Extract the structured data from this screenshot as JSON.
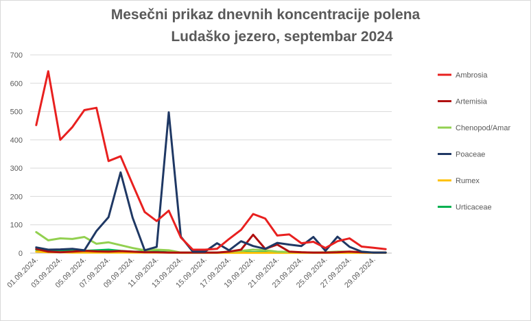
{
  "chart_data": {
    "type": "line",
    "title": "Mesečni prikaz dnevnih koncentracije polena",
    "subtitle": "Ludaško jezero, septembar 2024",
    "ylim": [
      0,
      700
    ],
    "y_ticks": [
      0,
      100,
      200,
      300,
      400,
      500,
      600,
      700
    ],
    "grid": true,
    "legend_position": "right",
    "x": [
      "01.09.2024.",
      "02.09.2024.",
      "03.09.2024.",
      "04.09.2024.",
      "05.09.2024.",
      "06.09.2024.",
      "07.09.2024.",
      "08.09.2024.",
      "09.09.2024.",
      "10.09.2024.",
      "11.09.2024.",
      "12.09.2024.",
      "13.09.2024.",
      "14.09.2024.",
      "15.09.2024.",
      "16.09.2024.",
      "17.09.2024.",
      "18.09.2024.",
      "19.09.2024.",
      "20.09.2024.",
      "21.09.2024.",
      "22.09.2024.",
      "23.09.2024.",
      "24.09.2024.",
      "25.09.2024.",
      "26.09.2024.",
      "27.09.2024.",
      "28.09.2024.",
      "29.09.2024.",
      "30.09.2024."
    ],
    "x_tick_labels": [
      "01.09.2024.",
      "03.09.2024.",
      "05.09.2024.",
      "07.09.2024.",
      "09.09.2024.",
      "11.09.2024.",
      "13.09.2024.",
      "15.09.2024.",
      "17.09.2024.",
      "19.09.2024.",
      "21.09.2024.",
      "23.09.2024.",
      "25.09.2024.",
      "27.09.2024.",
      "29.09.2024."
    ],
    "series": [
      {
        "name": "Ambrosia",
        "color": "#e8201f",
        "values": [
          452,
          642,
          400,
          445,
          505,
          513,
          325,
          342,
          243,
          145,
          113,
          150,
          55,
          12,
          12,
          15,
          50,
          82,
          138,
          122,
          62,
          66,
          35,
          40,
          18,
          42,
          52,
          23,
          19,
          14
        ]
      },
      {
        "name": "Artemisia",
        "color": "#b01010",
        "values": [
          15,
          5,
          3,
          5,
          8,
          6,
          5,
          7,
          5,
          3,
          3,
          2,
          2,
          2,
          2,
          2,
          5,
          12,
          65,
          15,
          30,
          5,
          3,
          2,
          2,
          3,
          5,
          3,
          2,
          2
        ]
      },
      {
        "name": "Chenopod/Amar",
        "color": "#92d050",
        "values": [
          74,
          45,
          52,
          50,
          57,
          33,
          38,
          28,
          18,
          10,
          12,
          10,
          2,
          2,
          2,
          2,
          5,
          8,
          12,
          10,
          5,
          4,
          3,
          2,
          3,
          5,
          5,
          3,
          2,
          2
        ]
      },
      {
        "name": "Poaceae",
        "color": "#1f3864",
        "values": [
          20,
          12,
          13,
          15,
          10,
          78,
          127,
          285,
          125,
          10,
          22,
          497,
          58,
          5,
          5,
          35,
          10,
          42,
          25,
          15,
          36,
          30,
          25,
          57,
          8,
          58,
          22,
          5,
          2,
          2
        ]
      },
      {
        "name": "Rumex",
        "color": "#ffc000",
        "values": [
          5,
          3,
          3,
          2,
          2,
          2,
          2,
          2,
          2,
          2,
          2,
          2,
          1,
          1,
          1,
          1,
          1,
          1,
          1,
          1,
          1,
          1,
          1,
          1,
          1,
          1,
          1,
          1,
          1,
          1
        ]
      },
      {
        "name": "Urticaceae",
        "color": "#00b050",
        "values": [
          12,
          8,
          8,
          8,
          8,
          10,
          12,
          8,
          5,
          5,
          5,
          3,
          2,
          2,
          2,
          2,
          2,
          3,
          3,
          3,
          3,
          3,
          2,
          2,
          2,
          2,
          2,
          2,
          2,
          2
        ]
      }
    ]
  }
}
